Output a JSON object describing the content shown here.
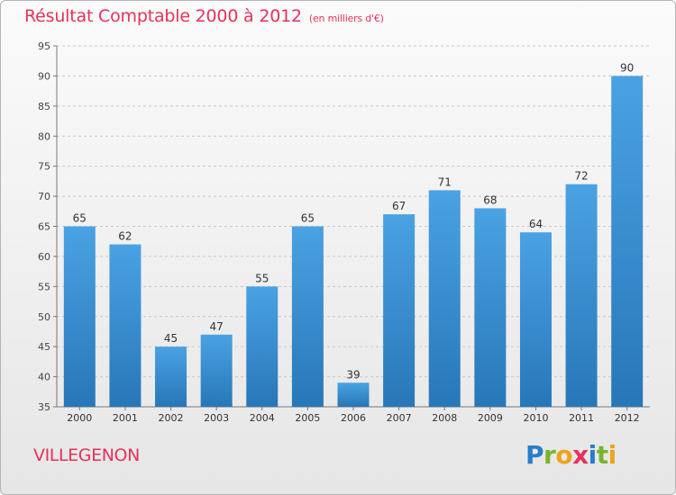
{
  "header": {
    "title": "Résultat Comptable 2000 à 2012",
    "subtitle": "(en milliers d'€)"
  },
  "footer": {
    "commune": "VILLEGENON",
    "brand_letters": [
      {
        "ch": "P",
        "color": "#2b7cc9"
      },
      {
        "ch": "r",
        "color": "#79b52a"
      },
      {
        "ch": "o",
        "color": "#f1a21d"
      },
      {
        "ch": "x",
        "color": "#e5325b"
      },
      {
        "ch": "i",
        "color": "#2b7cc9"
      },
      {
        "ch": "t",
        "color": "#79b52a"
      },
      {
        "ch": "i",
        "color": "#f1a21d"
      }
    ]
  },
  "chart_data": {
    "type": "bar",
    "title": "Résultat Comptable 2000 à 2012",
    "subtitle": "(en milliers d'€)",
    "categories": [
      "2000",
      "2001",
      "2002",
      "2003",
      "2004",
      "2005",
      "2006",
      "2007",
      "2008",
      "2009",
      "2010",
      "2011",
      "2012"
    ],
    "values": [
      65,
      62,
      45,
      47,
      55,
      65,
      39,
      67,
      71,
      68,
      64,
      72,
      90
    ],
    "ylim": [
      35,
      95
    ],
    "yticks": [
      35,
      40,
      45,
      50,
      55,
      60,
      65,
      70,
      75,
      80,
      85,
      90,
      95
    ],
    "grid": true,
    "bar_color": "#4aa2e3",
    "bar_color_dark": "#2777b8"
  }
}
